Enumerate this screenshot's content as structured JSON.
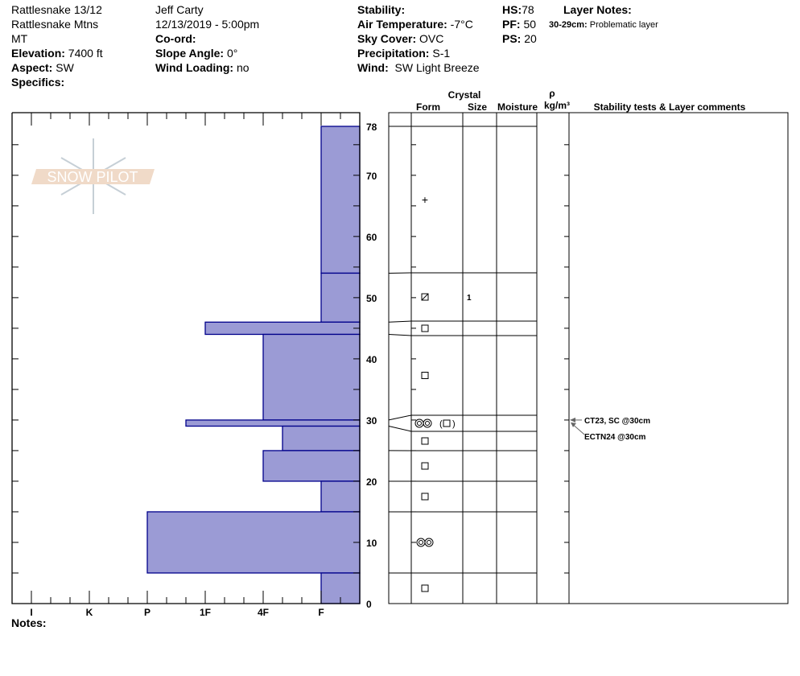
{
  "header": {
    "col1": {
      "site": "Rattlesnake 13/12",
      "range": "Rattlesnake Mtns",
      "state": "MT",
      "elevation_label": "Elevation:",
      "elevation": "7400 ft",
      "aspect_label": "Aspect:",
      "aspect": "SW",
      "specifics_label": "Specifics:"
    },
    "col2": {
      "observer": "Jeff Carty",
      "datetime": "12/13/2019 - 5:00pm",
      "coord_label": "Co-ord:",
      "slope_label": "Slope Angle:",
      "slope": "0°",
      "wind_loading_label": "Wind Loading:",
      "wind_loading": "no"
    },
    "col3": {
      "stability_label": "Stability:",
      "air_temp_label": "Air Temperature:",
      "air_temp": "-7°C",
      "sky_label": "Sky Cover:",
      "sky": "OVC",
      "precip_label": "Precipitation:",
      "precip": "S-1",
      "wind_label": "Wind:",
      "wind": "SW Light Breeze"
    },
    "col4": {
      "hs_label": "HS:",
      "hs": "78",
      "pf_label": "PF:",
      "pf": "50",
      "ps_label": "PS:",
      "ps": "20"
    },
    "layer_notes": {
      "title": "Layer Notes:",
      "range": "30-29cm:",
      "note": "Problematic layer"
    }
  },
  "notes_label": "Notes:",
  "logo_text": "SNOW PILOT",
  "columns": {
    "crystal": "Crystal",
    "form": "Form",
    "size": "Size",
    "moisture": "Moisture",
    "rho": "ρ",
    "density_unit": "kg/m³",
    "comments": "Stability tests & Layer comments"
  },
  "chart_data": {
    "type": "bar",
    "orientation": "horizontal-profile",
    "x_categories": [
      "I",
      "K",
      "P",
      "1F",
      "4F",
      "F"
    ],
    "y_ticks": [
      0,
      10,
      20,
      30,
      40,
      50,
      60,
      70,
      78
    ],
    "ylim": [
      0,
      78
    ],
    "y_unit": "cm",
    "bar_color": "#9b9bd5",
    "edge_color": "#00008b",
    "layers": [
      {
        "top": 78,
        "bottom": 54,
        "hardness": "F",
        "form": "PP",
        "size": ""
      },
      {
        "top": 54,
        "bottom": 46,
        "hardness": "F",
        "form": "FCxr",
        "size": "1"
      },
      {
        "top": 46,
        "bottom": 44,
        "hardness": "1F",
        "form": "FC",
        "size": ""
      },
      {
        "top": 44,
        "bottom": 30,
        "hardness": "4F",
        "form": "FC",
        "size": ""
      },
      {
        "top": 30,
        "bottom": 29,
        "hardness": "1F+",
        "form": "DH(FC)",
        "size": ""
      },
      {
        "top": 29,
        "bottom": 25,
        "hardness": "4F-",
        "form": "FC",
        "size": ""
      },
      {
        "top": 25,
        "bottom": 20,
        "hardness": "4F",
        "form": "FC",
        "size": ""
      },
      {
        "top": 20,
        "bottom": 15,
        "hardness": "F",
        "form": "FC",
        "size": ""
      },
      {
        "top": 15,
        "bottom": 5,
        "hardness": "P",
        "form": "DH",
        "size": ""
      },
      {
        "top": 5,
        "bottom": 0,
        "hardness": "F",
        "form": "FC",
        "size": ""
      }
    ],
    "stability_tests": [
      {
        "depth": 30,
        "label": "CT23, SC @30cm"
      },
      {
        "depth": 30,
        "label": "ECTN24 @30cm"
      }
    ]
  }
}
